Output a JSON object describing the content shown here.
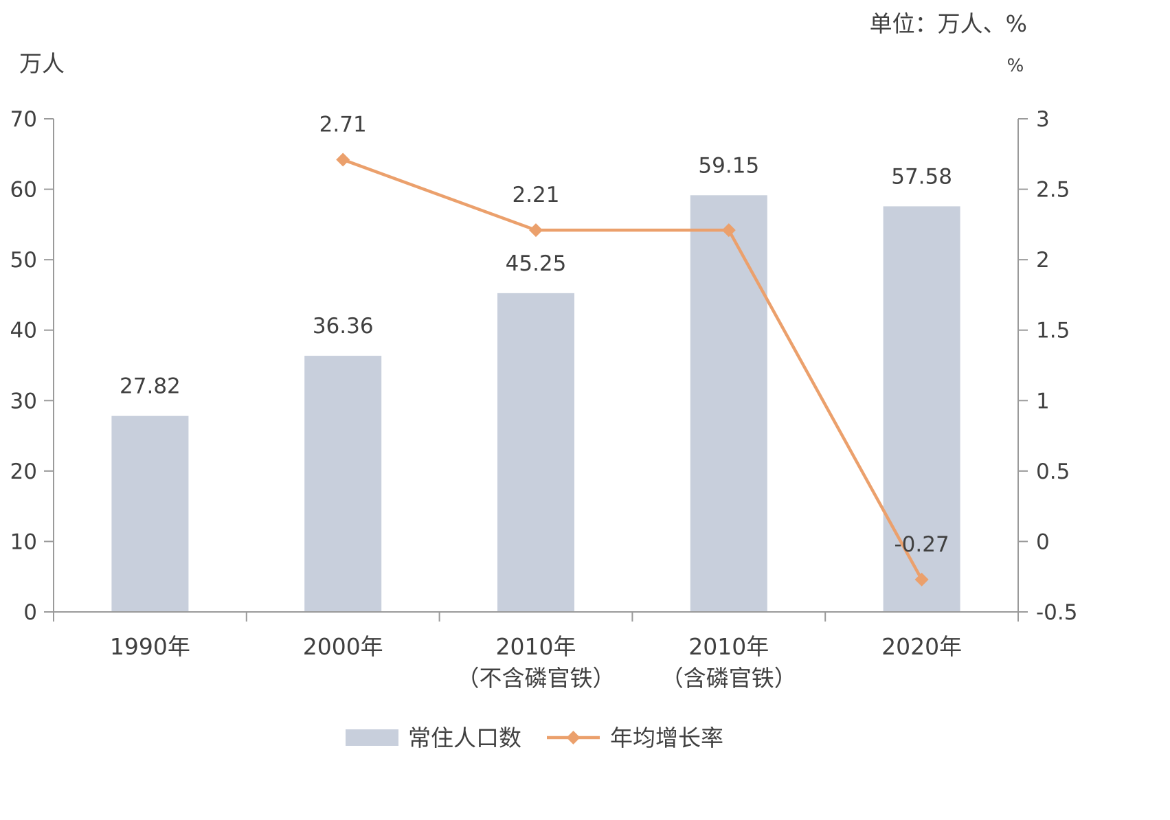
{
  "unit_note": "单位：万人、%",
  "chart_data": {
    "type": "bar",
    "categories": [
      [
        "1990年"
      ],
      [
        "2000年"
      ],
      [
        "2010年",
        "（不含磷官铁）"
      ],
      [
        "2010年",
        "（含磷官铁）"
      ],
      [
        "2020年"
      ]
    ],
    "series": [
      {
        "name": "常住人口数",
        "type": "bar",
        "axis": "left",
        "color": "#c8cfdc",
        "values": [
          27.82,
          36.36,
          45.25,
          59.15,
          57.58
        ],
        "labels": [
          "27.82",
          "36.36",
          "45.25",
          "59.15",
          "57.58"
        ]
      },
      {
        "name": "年均增长率",
        "type": "line",
        "axis": "right",
        "color": "#eba06c",
        "values": [
          null,
          2.71,
          2.21,
          2.21,
          -0.27
        ],
        "labels": [
          null,
          "2.71",
          "2.21",
          null,
          "-0.27"
        ]
      }
    ],
    "y_left": {
      "label": "万人",
      "ylim": [
        0,
        70
      ],
      "ticks": [
        "0",
        "10",
        "20",
        "30",
        "40",
        "50",
        "60",
        "70"
      ]
    },
    "y_right": {
      "label": "%",
      "ylim": [
        -0.5,
        3
      ],
      "ticks": [
        "-0.5",
        "0",
        "0.5",
        "1",
        "1.5",
        "2",
        "2.5",
        "3"
      ]
    },
    "grid": false,
    "legend": "bottom-center"
  }
}
